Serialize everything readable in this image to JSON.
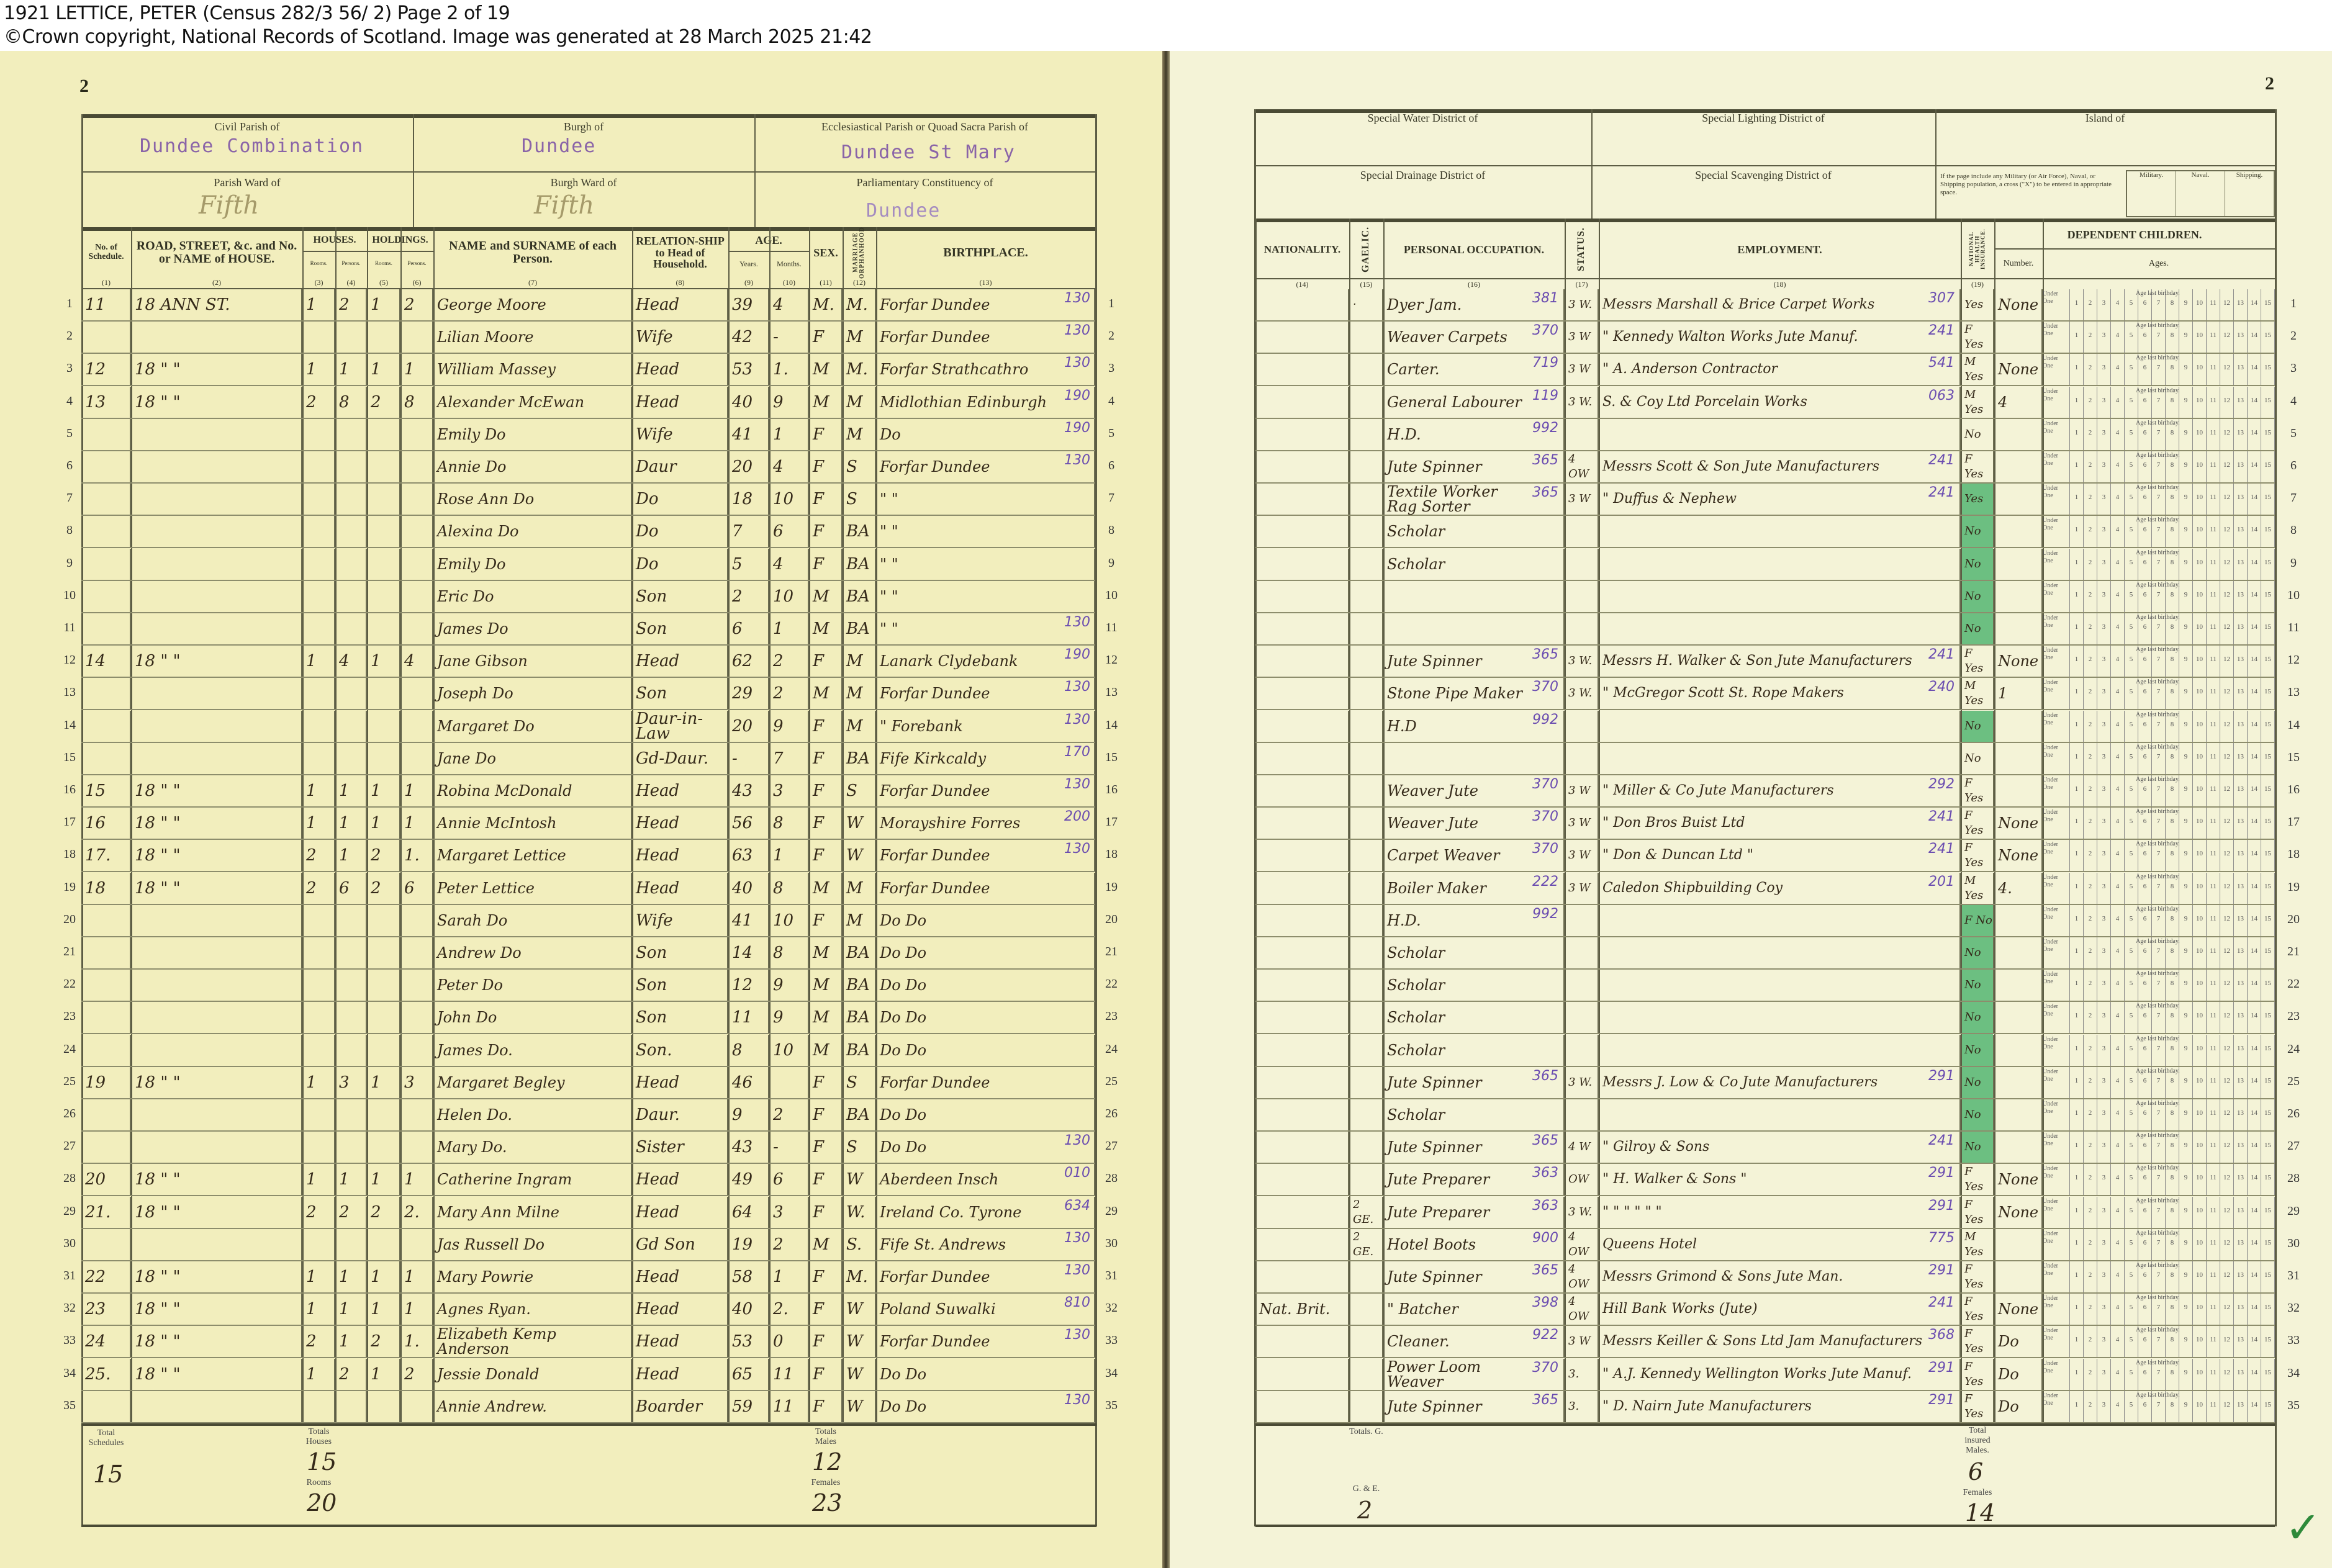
{
  "header": {
    "title": "1921 LETTICE, PETER (Census 282/3 56/ 2) Page 2 of 19",
    "copyright": "©Crown copyright, National Records of Scotland. Image was generated at 28 March 2025 21:42"
  },
  "left": {
    "page_number": "2",
    "civil_parish_label": "Civil Parish of",
    "civil_parish": "Dundee Combination",
    "burgh_label": "Burgh of",
    "burgh": "Dundee",
    "eccl_parish_label": "Ecclesiastical Parish or Quoad Sacra Parish of",
    "eccl_parish": "Dundee St Mary",
    "parish_ward_label": "Parish Ward of",
    "parish_ward": "Fifth",
    "burgh_ward_label": "Burgh Ward of",
    "burgh_ward": "Fifth",
    "constituency_label": "Parliamentary Constituency of",
    "constituency": "Dundee",
    "columns": {
      "schedule": "No. of Schedule.",
      "address": "ROAD, STREET, &c. and No. or NAME of HOUSE.",
      "houses": "HOUSES.",
      "holdings": "HOLDINGS.",
      "rooms": "Rooms.",
      "persons": "Persons.",
      "name": "NAME and SURNAME of each Person.",
      "relation": "RELATION-SHIP to Head of Household.",
      "age": "AGE.",
      "years": "Years.",
      "months": "Months.",
      "sex": "SEX.",
      "marriage": "MARRIAGE ORPHANHOOD",
      "birthplace": "BIRTHPLACE.",
      "numbers": [
        "(1)",
        "(2)",
        "(3)",
        "(4)",
        "(5)",
        "(6)",
        "(7)",
        "(8)",
        "(9)",
        "(10)",
        "(11)",
        "(12)",
        "(13)"
      ]
    },
    "rows": [
      [
        "11",
        "18 ANN ST.",
        "1",
        "2",
        "1",
        "2",
        "George Moore",
        "Head",
        "39",
        "4",
        "M.",
        "M.",
        "Forfar Dundee",
        "130"
      ],
      [
        "",
        "",
        "",
        "",
        "",
        "",
        "Lilian Moore",
        "Wife",
        "42",
        "-",
        "F",
        "M",
        "Forfar Dundee",
        "130"
      ],
      [
        "12",
        "18 \" \"",
        "1",
        "1",
        "1",
        "1",
        "William Massey",
        "Head",
        "53",
        "1.",
        "M",
        "M.",
        "Forfar Strathcathro",
        "130"
      ],
      [
        "13",
        "18 \" \"",
        "2",
        "8",
        "2",
        "8",
        "Alexander McEwan",
        "Head",
        "40",
        "9",
        "M",
        "M",
        "Midlothian Edinburgh",
        "190"
      ],
      [
        "",
        "",
        "",
        "",
        "",
        "",
        "Emily Do",
        "Wife",
        "41",
        "1",
        "F",
        "M",
        "Do",
        "190"
      ],
      [
        "",
        "",
        "",
        "",
        "",
        "",
        "Annie Do",
        "Daur",
        "20",
        "4",
        "F",
        "S",
        "Forfar Dundee",
        "130"
      ],
      [
        "",
        "",
        "",
        "",
        "",
        "",
        "Rose Ann Do",
        "Do",
        "18",
        "10",
        "F",
        "S",
        "\" \"",
        ""
      ],
      [
        "",
        "",
        "",
        "",
        "",
        "",
        "Alexina Do",
        "Do",
        "7",
        "6",
        "F",
        "BA",
        "\" \"",
        ""
      ],
      [
        "",
        "",
        "",
        "",
        "",
        "",
        "Emily Do",
        "Do",
        "5",
        "4",
        "F",
        "BA",
        "\" \"",
        ""
      ],
      [
        "",
        "",
        "",
        "",
        "",
        "",
        "Eric Do",
        "Son",
        "2",
        "10",
        "M",
        "BA",
        "\" \"",
        ""
      ],
      [
        "",
        "",
        "",
        "",
        "",
        "",
        "James Do",
        "Son",
        "6",
        "1",
        "M",
        "BA",
        "\" \"",
        "130"
      ],
      [
        "14",
        "18 \" \"",
        "1",
        "4",
        "1",
        "4",
        "Jane Gibson",
        "Head",
        "62",
        "2",
        "F",
        "M",
        "Lanark Clydebank",
        "190"
      ],
      [
        "",
        "",
        "",
        "",
        "",
        "",
        "Joseph Do",
        "Son",
        "29",
        "2",
        "M",
        "M",
        "Forfar Dundee",
        "130"
      ],
      [
        "",
        "",
        "",
        "",
        "",
        "",
        "Margaret Do",
        "Daur-in-Law",
        "20",
        "9",
        "F",
        "M",
        "\" Forebank",
        "130"
      ],
      [
        "",
        "",
        "",
        "",
        "",
        "",
        "Jane Do",
        "Gd-Daur.",
        "-",
        "7",
        "F",
        "BA",
        "Fife Kirkcaldy",
        "170"
      ],
      [
        "15",
        "18 \" \"",
        "1",
        "1",
        "1",
        "1",
        "Robina McDonald",
        "Head",
        "43",
        "3",
        "F",
        "S",
        "Forfar Dundee",
        "130"
      ],
      [
        "16",
        "18 \" \"",
        "1",
        "1",
        "1",
        "1",
        "Annie McIntosh",
        "Head",
        "56",
        "8",
        "F",
        "W",
        "Morayshire Forres",
        "200"
      ],
      [
        "17.",
        "18 \" \"",
        "2",
        "1",
        "2",
        "1.",
        "Margaret Lettice",
        "Head",
        "63",
        "1",
        "F",
        "W",
        "Forfar Dundee",
        "130"
      ],
      [
        "18",
        "18 \" \"",
        "2",
        "6",
        "2",
        "6",
        "Peter Lettice",
        "Head",
        "40",
        "8",
        "M",
        "M",
        "Forfar Dundee",
        ""
      ],
      [
        "",
        "",
        "",
        "",
        "",
        "",
        "Sarah Do",
        "Wife",
        "41",
        "10",
        "F",
        "M",
        "Do Do",
        ""
      ],
      [
        "",
        "",
        "",
        "",
        "",
        "",
        "Andrew Do",
        "Son",
        "14",
        "8",
        "M",
        "BA",
        "Do Do",
        ""
      ],
      [
        "",
        "",
        "",
        "",
        "",
        "",
        "Peter Do",
        "Son",
        "12",
        "9",
        "M",
        "BA",
        "Do Do",
        ""
      ],
      [
        "",
        "",
        "",
        "",
        "",
        "",
        "John Do",
        "Son",
        "11",
        "9",
        "M",
        "BA",
        "Do Do",
        ""
      ],
      [
        "",
        "",
        "",
        "",
        "",
        "",
        "James Do.",
        "Son.",
        "8",
        "10",
        "M",
        "BA",
        "Do Do",
        ""
      ],
      [
        "19",
        "18 \" \"",
        "1",
        "3",
        "1",
        "3",
        "Margaret Begley",
        "Head",
        "46",
        "",
        "F",
        "S",
        "Forfar Dundee",
        ""
      ],
      [
        "",
        "",
        "",
        "",
        "",
        "",
        "Helen Do.",
        "Daur.",
        "9",
        "2",
        "F",
        "BA",
        "Do Do",
        ""
      ],
      [
        "",
        "",
        "",
        "",
        "",
        "",
        "Mary Do.",
        "Sister",
        "43",
        "-",
        "F",
        "S",
        "Do Do",
        "130"
      ],
      [
        "20",
        "18 \" \"",
        "1",
        "1",
        "1",
        "1",
        "Catherine Ingram",
        "Head",
        "49",
        "6",
        "F",
        "W",
        "Aberdeen Insch",
        "010"
      ],
      [
        "21.",
        "18 \" \"",
        "2",
        "2",
        "2",
        "2.",
        "Mary Ann Milne",
        "Head",
        "64",
        "3",
        "F",
        "W.",
        "Ireland Co. Tyrone",
        "634"
      ],
      [
        "",
        "",
        "",
        "",
        "",
        "",
        "Jas Russell Do",
        "Gd Son",
        "19",
        "2",
        "M",
        "S.",
        "Fife St. Andrews",
        "130"
      ],
      [
        "22",
        "18 \" \"",
        "1",
        "1",
        "1",
        "1",
        "Mary Powrie",
        "Head",
        "58",
        "1",
        "F",
        "M.",
        "Forfar Dundee",
        "130"
      ],
      [
        "23",
        "18 \" \"",
        "1",
        "1",
        "1",
        "1",
        "Agnes Ryan.",
        "Head",
        "40",
        "2.",
        "F",
        "W",
        "Poland Suwalki",
        "810"
      ],
      [
        "24",
        "18 \" \"",
        "2",
        "1",
        "2",
        "1.",
        "Elizabeth Kemp Anderson",
        "Head",
        "53",
        "0",
        "F",
        "W",
        "Forfar Dundee",
        "130"
      ],
      [
        "25.",
        "18 \" \"",
        "1",
        "2",
        "1",
        "2",
        "Jessie Donald",
        "Head",
        "65",
        "11",
        "F",
        "W",
        "Do Do",
        ""
      ],
      [
        "",
        "",
        "",
        "",
        "",
        "",
        "Annie Andrew.",
        "Boarder",
        "59",
        "11",
        "F",
        "W",
        "Do Do",
        "130"
      ]
    ],
    "totals": {
      "schedules_label": "Total Schedules",
      "schedules": "15",
      "houses_label": "Totals Houses",
      "houses": "15",
      "rooms_label": "Rooms",
      "rooms": "20",
      "males_label": "Totals Males",
      "males": "12",
      "females_label": "Females",
      "females": "23"
    }
  },
  "right": {
    "page_number": "2",
    "water_label": "Special Water District of",
    "lighting_label": "Special Lighting District of",
    "island_label": "Island of",
    "drainage_label": "Special Drainage District of",
    "scavenging_label": "Special Scavenging District of",
    "military_note": "If the page include any Military (or Air Force), Naval, or Shipping population, a cross (\"X\") to be entered in appropriate space.",
    "military": "Military.",
    "naval": "Naval.",
    "shipping": "Shipping.",
    "columns": {
      "nationality": "NATIONALITY.",
      "gaelic": "GAELIC.",
      "occupation": "PERSONAL OCCUPATION.",
      "status": "STATUS.",
      "employment": "EMPLOYMENT.",
      "nhi": "NATIONAL HEALTH INSURANCE.",
      "dependent": "DEPENDENT CHILDREN.",
      "number": "Number.",
      "ages": "Ages.",
      "numbers": [
        "(14)",
        "(15)",
        "(16)",
        "(17)",
        "(18)",
        "(19)"
      ]
    },
    "ages_grid": {
      "under_one": "Under One",
      "caption": "Age last birthday.",
      "ages": [
        "1",
        "2",
        "3",
        "4",
        "5",
        "6",
        "7",
        "8",
        "9",
        "10",
        "11",
        "12",
        "13",
        "14",
        "15"
      ]
    },
    "rows": [
      [
        "",
        "·",
        "Dyer Jam.",
        "381",
        "3 W.",
        "Messrs Marshall & Brice Carpet Works",
        "307",
        "Yes",
        "None"
      ],
      [
        "",
        "",
        "Weaver Carpets",
        "370",
        "3 W",
        "\" Kennedy Walton Works Jute Manuf.",
        "241",
        "F Yes",
        ""
      ],
      [
        "",
        "",
        "Carter.",
        "719",
        "3 W",
        "\" A. Anderson Contractor",
        "541",
        "M Yes",
        "None"
      ],
      [
        "",
        "",
        "General Labourer",
        "119",
        "3 W.",
        "S. & Coy Ltd Porcelain Works",
        "063",
        "M Yes",
        "4"
      ],
      [
        "",
        "",
        "H.D.",
        "992",
        "",
        "",
        "",
        "No",
        ""
      ],
      [
        "",
        "",
        "Jute Spinner",
        "365",
        "4 OW",
        "Messrs Scott & Son Jute Manufacturers",
        "241",
        "F Yes",
        ""
      ],
      [
        "",
        "",
        "Textile Worker Rag Sorter",
        "365",
        "3 W",
        "\" Duffus & Nephew",
        "241",
        "Yes",
        ""
      ],
      [
        "",
        "",
        "Scholar",
        "",
        "",
        "",
        "",
        "No",
        ""
      ],
      [
        "",
        "",
        "Scholar",
        "",
        "",
        "",
        "",
        "No",
        ""
      ],
      [
        "",
        "",
        "",
        "",
        "",
        "",
        "",
        "No",
        ""
      ],
      [
        "",
        "",
        "",
        "",
        "",
        "",
        "",
        "No",
        ""
      ],
      [
        "",
        "",
        "Jute Spinner",
        "365",
        "3 W.",
        "Messrs H. Walker & Son Jute Manufacturers",
        "241",
        "F Yes",
        "None"
      ],
      [
        "",
        "",
        "Stone Pipe Maker",
        "370",
        "3 W.",
        "\" McGregor Scott St. Rope Makers",
        "240",
        "M Yes",
        "1"
      ],
      [
        "",
        "",
        "H.D",
        "992",
        "",
        "",
        "",
        "No",
        ""
      ],
      [
        "",
        "",
        "",
        "",
        "",
        "",
        "",
        "No",
        ""
      ],
      [
        "",
        "",
        "Weaver Jute",
        "370",
        "3 W",
        "\" Miller & Co Jute Manufacturers",
        "292",
        "F Yes",
        ""
      ],
      [
        "",
        "",
        "Weaver Jute",
        "370",
        "3 W",
        "\" Don Bros Buist Ltd",
        "241",
        "F Yes",
        "None"
      ],
      [
        "",
        "",
        "Carpet Weaver",
        "370",
        "3 W",
        "\" Don & Duncan Ltd \"",
        "241",
        "F Yes",
        "None"
      ],
      [
        "",
        "",
        "Boiler Maker",
        "222",
        "3 W",
        "Caledon Shipbuilding Coy",
        "201",
        "M Yes",
        "4."
      ],
      [
        "",
        "",
        "H.D.",
        "992",
        "",
        "",
        "",
        "F No",
        ""
      ],
      [
        "",
        "",
        "Scholar",
        "",
        "",
        "",
        "",
        "No",
        ""
      ],
      [
        "",
        "",
        "Scholar",
        "",
        "",
        "",
        "",
        "No",
        ""
      ],
      [
        "",
        "",
        "Scholar",
        "",
        "",
        "",
        "",
        "No",
        ""
      ],
      [
        "",
        "",
        "Scholar",
        "",
        "",
        "",
        "",
        "No",
        ""
      ],
      [
        "",
        "",
        "Jute Spinner",
        "365",
        "3 W.",
        "Messrs J. Low & Co Jute Manufacturers",
        "291",
        "No",
        ""
      ],
      [
        "",
        "",
        "Scholar",
        "",
        "",
        "",
        "",
        "No",
        ""
      ],
      [
        "",
        "",
        "Jute Spinner",
        "365",
        "4 W",
        "\" Gilroy & Sons",
        "241",
        "No",
        ""
      ],
      [
        "",
        "",
        "Jute Preparer",
        "363",
        "OW",
        "\" H. Walker & Sons \"",
        "291",
        "F Yes",
        "None"
      ],
      [
        "",
        "2 GE.",
        "Jute Preparer",
        "363",
        "3 W.",
        "\" \" \" \" \" \"",
        "291",
        "F Yes",
        "None"
      ],
      [
        "",
        "2 GE.",
        "Hotel Boots",
        "900",
        "4 OW",
        "Queens Hotel",
        "775",
        "M Yes",
        ""
      ],
      [
        "",
        "",
        "Jute Spinner",
        "365",
        "4 OW",
        "Messrs Grimond & Sons Jute Man.",
        "291",
        "F Yes",
        ""
      ],
      [
        "Nat. Brit.",
        "",
        "\" Batcher",
        "398",
        "4 OW",
        "Hill Bank Works (Jute)",
        "241",
        "F Yes",
        "None"
      ],
      [
        "",
        "",
        "Cleaner.",
        "922",
        "3 W",
        "Messrs Keiller & Sons Ltd Jam Manufacturers",
        "368",
        "F Yes",
        "Do"
      ],
      [
        "",
        "",
        "Power Loom Weaver",
        "370",
        "3.",
        "\" A.J. Kennedy Wellington Works Jute Manuf.",
        "291",
        "F Yes",
        "Do"
      ],
      [
        "",
        "",
        "Jute Spinner",
        "365",
        "3.",
        "\" D. Nairn Jute Manufacturers",
        "291",
        "F Yes",
        "Do"
      ]
    ],
    "totals": {
      "g_label": "Totals. G.",
      "g": "",
      "ge_label": "G. & E.",
      "ge": "2",
      "insured_label": "Total insured Males.",
      "insured_males": "6",
      "females_label": "Females",
      "insured_females": "14"
    }
  },
  "colors": {
    "page_left": "#f2eebd",
    "page_right": "#f4f3d7",
    "stamp": "#8a64a8",
    "code_ink": "#6a4cb0",
    "nhi_green": "#3fae64"
  }
}
